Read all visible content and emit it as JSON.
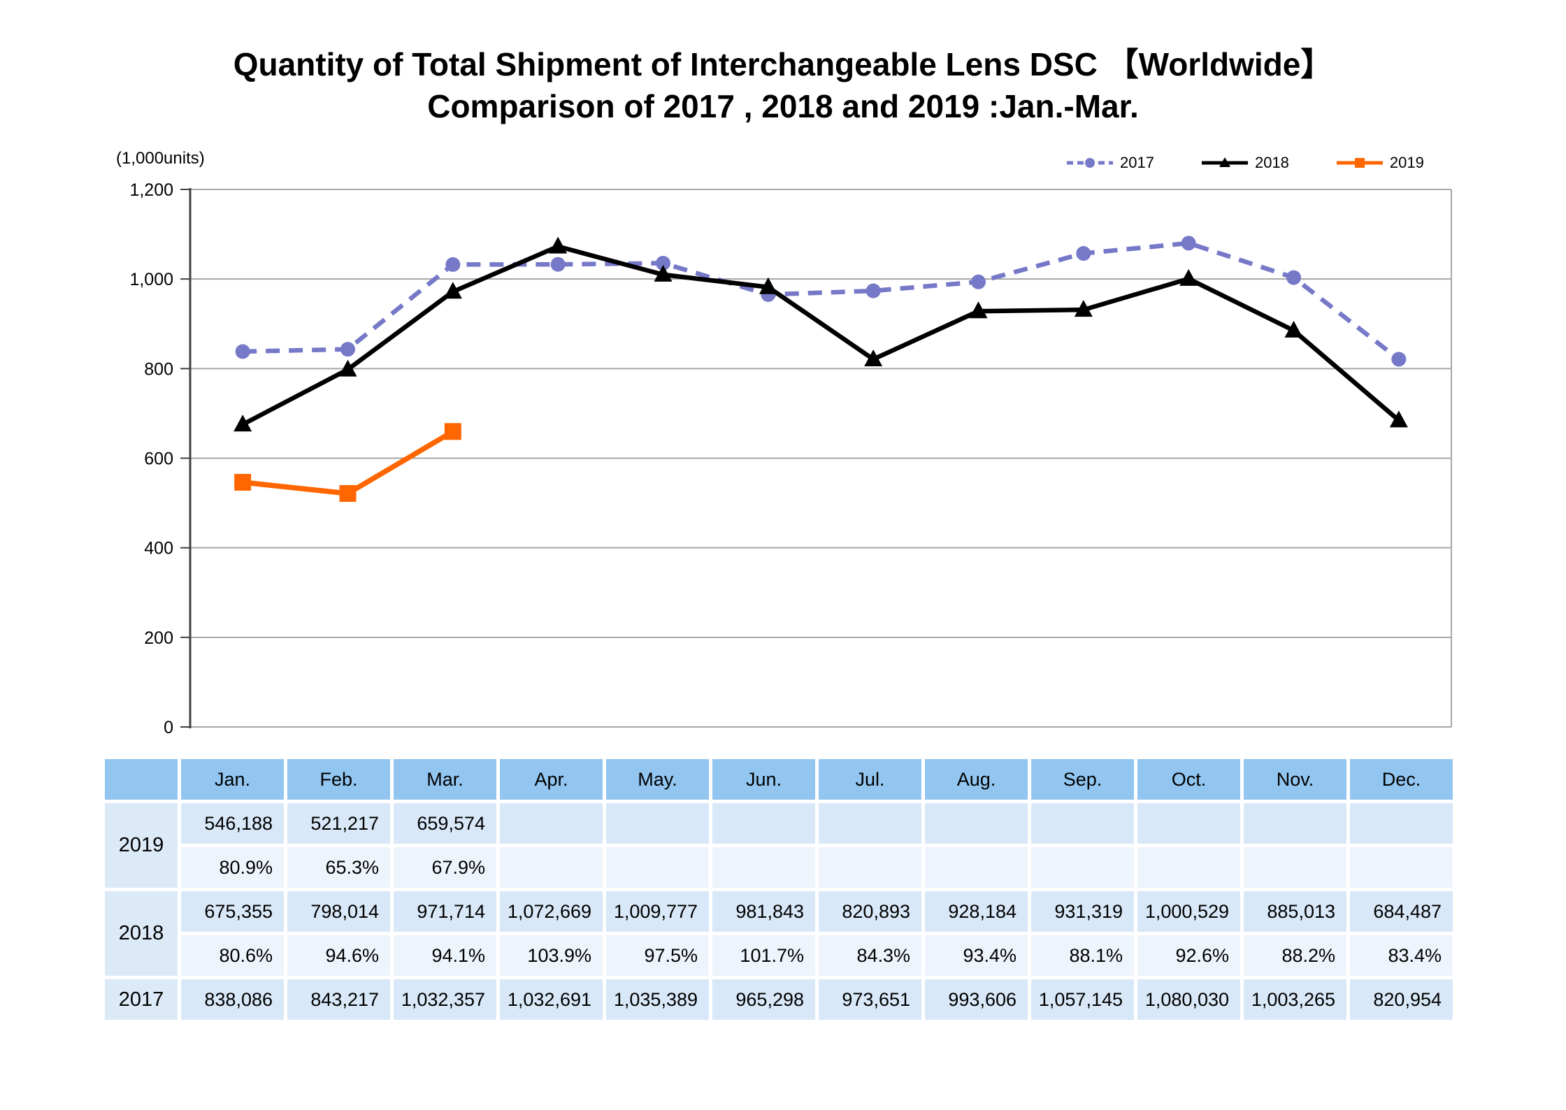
{
  "title": {
    "line1": "Quantity of Total Shipment of Interchangeable Lens DSC 【Worldwide】",
    "line2": "Comparison of 2017 , 2018 and 2019 :Jan.-Mar."
  },
  "colors": {
    "series_2017": "#7678C8",
    "series_2018": "#000000",
    "series_2019": "#FF6600",
    "table_header_bg": "#92C6F1",
    "table_units_row_bg": "#D9E8F8",
    "table_ratio_row_bg": "#EEF4FC",
    "table_year_cell_bg": "#DCEAF8",
    "gridline": "#A6A6A6",
    "axis": "#404040"
  },
  "chart_data": {
    "type": "line",
    "unit_label": "(1,000units)",
    "categories": [
      "Jan.",
      "Feb.",
      "Mar.",
      "Apr.",
      "May.",
      "Jun.",
      "Jul.",
      "Aug.",
      "Sep.",
      "Oct.",
      "Nov.",
      "Dec."
    ],
    "ylim": [
      0,
      1200
    ],
    "ytick_interval": 200,
    "yticks": [
      "0",
      "200",
      "400",
      "600",
      "800",
      "1,000",
      "1,200"
    ],
    "grid": true,
    "legend_position": "top-right",
    "series": [
      {
        "name": "2017",
        "color": "#7678C8",
        "style": "dashed",
        "marker": "circle",
        "values_1000units": [
          838.086,
          843.217,
          1032.357,
          1032.691,
          1035.389,
          965.298,
          973.651,
          993.606,
          1057.145,
          1080.03,
          1003.265,
          820.954
        ]
      },
      {
        "name": "2018",
        "color": "#000000",
        "style": "solid",
        "marker": "triangle",
        "values_1000units": [
          675.355,
          798.014,
          971.714,
          1072.669,
          1009.777,
          981.843,
          820.893,
          928.184,
          931.319,
          1000.529,
          885.013,
          684.487
        ]
      },
      {
        "name": "2019",
        "color": "#FF6600",
        "style": "solid",
        "marker": "square",
        "values_1000units": [
          546.188,
          521.217,
          659.574,
          null,
          null,
          null,
          null,
          null,
          null,
          null,
          null,
          null
        ]
      }
    ]
  },
  "table": {
    "corner_label": "",
    "columns": [
      "Jan.",
      "Feb.",
      "Mar.",
      "Apr.",
      "May.",
      "Jun.",
      "Jul.",
      "Aug.",
      "Sep.",
      "Oct.",
      "Nov.",
      "Dec."
    ],
    "row_groups": [
      {
        "label": "2019",
        "units": [
          "546,188",
          "521,217",
          "659,574",
          "",
          "",
          "",
          "",
          "",
          "",
          "",
          "",
          ""
        ],
        "ratios": [
          "80.9%",
          "65.3%",
          "67.9%",
          "",
          "",
          "",
          "",
          "",
          "",
          "",
          "",
          ""
        ]
      },
      {
        "label": "2018",
        "units": [
          "675,355",
          "798,014",
          "971,714",
          "1,072,669",
          "1,009,777",
          "981,843",
          "820,893",
          "928,184",
          "931,319",
          "1,000,529",
          "885,013",
          "684,487"
        ],
        "ratios": [
          "80.6%",
          "94.6%",
          "94.1%",
          "103.9%",
          "97.5%",
          "101.7%",
          "84.3%",
          "93.4%",
          "88.1%",
          "92.6%",
          "88.2%",
          "83.4%"
        ]
      },
      {
        "label": "2017",
        "units": [
          "838,086",
          "843,217",
          "1,032,357",
          "1,032,691",
          "1,035,389",
          "965,298",
          "973,651",
          "993,606",
          "1,057,145",
          "1,080,030",
          "1,003,265",
          "820,954"
        ],
        "ratios": null
      }
    ]
  }
}
